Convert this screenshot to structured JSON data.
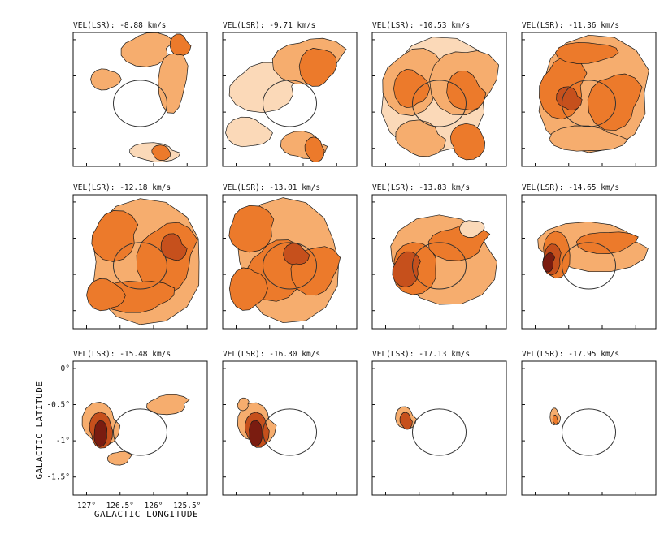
{
  "chart_data": {
    "type": "heatmap",
    "layout": "channel-map grid",
    "label_prefix": "VEL(LSR):",
    "label_unit": "km/s",
    "xlabel": "GALACTIC LONGITUDE",
    "ylabel": "GALACTIC LATITUDE",
    "xlim": [
      127.2,
      125.2
    ],
    "ylim": [
      -1.75,
      0.1
    ],
    "x_ticks": [
      127,
      126.5,
      126,
      125.5
    ],
    "x_tick_labels": [
      "127°",
      "126.5°",
      "126°",
      "125.5°"
    ],
    "y_ticks": [
      0,
      -0.5,
      -1,
      -1.5
    ],
    "y_tick_labels": [
      "0°",
      "-0.5°",
      "-1°",
      "-1.5°"
    ],
    "ellipse": {
      "center_l": 126.2,
      "center_b": -0.88,
      "semi_axis_l": 0.4,
      "semi_axis_b": 0.32
    },
    "panels": [
      {
        "velocity": "-8.88",
        "text": "-8.88 km/s"
      },
      {
        "velocity": "-9.71",
        "text": "-9.71 km/s"
      },
      {
        "velocity": "-10.53",
        "text": "-10.53 km/s"
      },
      {
        "velocity": "-11.36",
        "text": "-11.36 km/s"
      },
      {
        "velocity": "-12.18",
        "text": "-12.18 km/s"
      },
      {
        "velocity": "-13.01",
        "text": "-13.01 km/s"
      },
      {
        "velocity": "-13.83",
        "text": "-13.83 km/s"
      },
      {
        "velocity": "-14.65",
        "text": "-14.65 km/s"
      },
      {
        "velocity": "-15.48",
        "text": "-15.48 km/s"
      },
      {
        "velocity": "-16.30",
        "text": "-16.30 km/s"
      },
      {
        "velocity": "-17.13",
        "text": "-17.13 km/s"
      },
      {
        "velocity": "-17.95",
        "text": "-17.95 km/s"
      }
    ],
    "colors": {
      "faint": "#fbd9b8",
      "low": "#f6ad6e",
      "mid": "#ec7a2b",
      "high": "#c6501c",
      "peak": "#7a1c10",
      "contour": "#1a1a1a",
      "frame": "#111111"
    }
  }
}
